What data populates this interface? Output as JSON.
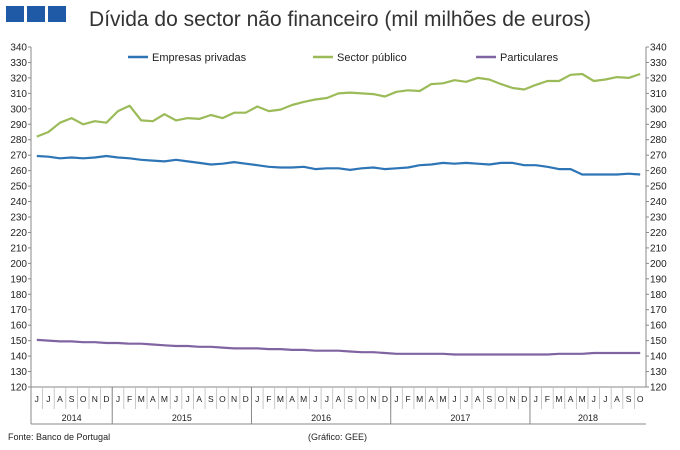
{
  "header": {
    "title": "Dívida do sector não financeiro (mil milhões de euros)",
    "logo_color": "#1f5aa6"
  },
  "footer": {
    "source": "Fonte: Banco de Portugal",
    "credit": "(Gráfico: GEE)"
  },
  "chart_data": {
    "type": "line",
    "title": "Dívida do sector não financeiro (mil milhões de euros)",
    "ylim": [
      120,
      340
    ],
    "y_step": 10,
    "grid": false,
    "legend_position": "top",
    "x_month_labels": [
      "J",
      "J",
      "A",
      "S",
      "O",
      "N",
      "D",
      "J",
      "F",
      "M",
      "A",
      "M",
      "J",
      "J",
      "A",
      "S",
      "O",
      "N",
      "D",
      "J",
      "F",
      "M",
      "A",
      "M",
      "J",
      "J",
      "A",
      "S",
      "O",
      "N",
      "D",
      "J",
      "F",
      "M",
      "A",
      "M",
      "J",
      "J",
      "A",
      "S",
      "O",
      "N",
      "D",
      "J",
      "F",
      "M",
      "A",
      "M",
      "J",
      "J",
      "A",
      "S",
      "O"
    ],
    "years": [
      {
        "label": "2014",
        "start": 0,
        "end": 6
      },
      {
        "label": "2015",
        "start": 7,
        "end": 18
      },
      {
        "label": "2016",
        "start": 19,
        "end": 30
      },
      {
        "label": "2017",
        "start": 31,
        "end": 42
      },
      {
        "label": "2018",
        "start": 43,
        "end": 52
      }
    ],
    "series": [
      {
        "name": "Empresas privadas",
        "color": "#2e75b6",
        "values": [
          269.5,
          269,
          268,
          268.5,
          268,
          268.5,
          269.5,
          268.5,
          268,
          267,
          266.5,
          266,
          267,
          266,
          265,
          264,
          264.5,
          265.5,
          264.5,
          263.5,
          262.5,
          262,
          262,
          262.5,
          261,
          261.5,
          261.5,
          260.5,
          261.5,
          262,
          261,
          261.5,
          262,
          263.5,
          264,
          265,
          264.5,
          265,
          264.5,
          264,
          265,
          265,
          263.5,
          263.5,
          262.5,
          261,
          261,
          257.5,
          257.5,
          257.5,
          257.5,
          258,
          257.5
        ]
      },
      {
        "name": "Sector público",
        "color": "#9bbb59",
        "values": [
          282,
          285,
          291,
          294,
          290,
          292,
          291,
          298.5,
          302,
          292.5,
          292,
          296.5,
          292.5,
          294,
          293.5,
          296,
          294,
          297.5,
          297.5,
          301.5,
          298.5,
          299.5,
          302.5,
          304.5,
          306,
          307,
          310,
          310.5,
          310,
          309.5,
          308,
          311,
          312,
          311.5,
          316,
          316.5,
          318.5,
          317.5,
          320,
          319,
          316,
          313.5,
          312.5,
          315.5,
          318,
          318,
          322,
          322.5,
          318,
          319,
          320.5,
          320,
          322.5
        ]
      },
      {
        "name": "Particulares",
        "color": "#8064a2",
        "values": [
          150.5,
          150,
          149.5,
          149.5,
          149,
          149,
          148.5,
          148.5,
          148,
          148,
          147.5,
          147,
          146.5,
          146.5,
          146,
          146,
          145.5,
          145,
          145,
          145,
          144.5,
          144.5,
          144,
          144,
          143.5,
          143.5,
          143.5,
          143,
          142.5,
          142.5,
          142,
          141.5,
          141.5,
          141.5,
          141.5,
          141.5,
          141,
          141,
          141,
          141,
          141,
          141,
          141,
          141,
          141,
          141.5,
          141.5,
          141.5,
          142,
          142,
          142,
          142,
          142
        ]
      }
    ]
  }
}
